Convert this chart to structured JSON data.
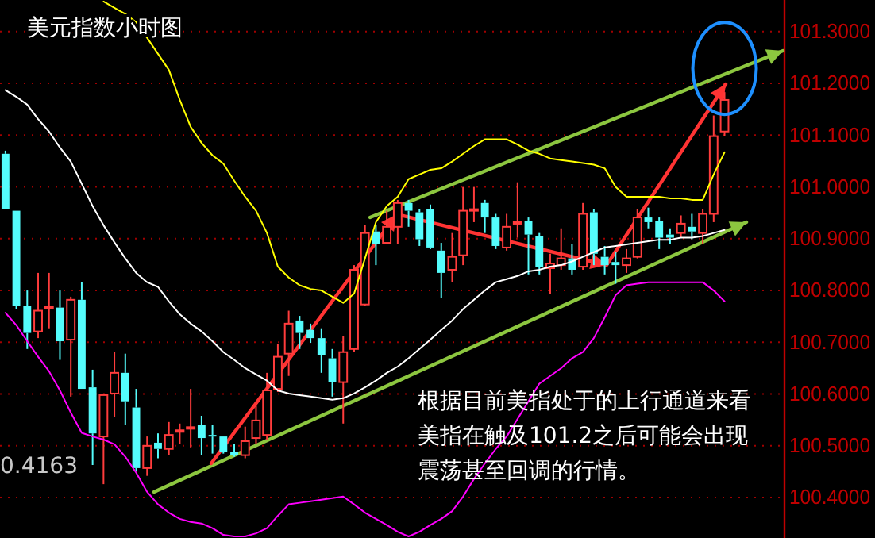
{
  "chart_data": {
    "type": "candlestick",
    "title": "美元指数小时图",
    "categories": [
      null,
      null,
      null,
      null,
      null,
      null,
      null,
      null,
      null,
      null,
      null,
      null,
      null,
      null,
      null,
      null,
      null,
      null,
      null,
      null,
      null,
      null,
      null,
      null,
      null,
      null,
      null,
      null,
      null,
      null,
      null,
      null,
      null,
      null,
      null,
      null,
      null,
      null,
      null,
      null,
      null,
      null,
      null,
      null,
      null,
      null,
      null,
      null,
      null,
      null,
      null,
      null,
      null,
      null,
      null,
      null,
      null,
      null,
      null,
      null,
      null,
      null,
      null,
      null,
      null,
      null,
      null,
      null,
      null,
      null,
      null,
      null
    ],
    "ohlc": [
      [
        101.064,
        101.07,
        100.957,
        100.957
      ],
      [
        100.954,
        100.954,
        100.764,
        100.77
      ],
      [
        100.77,
        100.8,
        100.687,
        100.718
      ],
      [
        100.721,
        100.834,
        100.708,
        100.761
      ],
      [
        100.766,
        100.834,
        100.727,
        100.769
      ],
      [
        100.767,
        100.8,
        100.666,
        100.702
      ],
      [
        100.705,
        100.788,
        100.595,
        100.782
      ],
      [
        100.782,
        100.816,
        100.61,
        100.61
      ],
      [
        100.613,
        100.647,
        100.463,
        100.524
      ],
      [
        100.518,
        100.601,
        100.426,
        100.598
      ],
      [
        100.601,
        100.681,
        100.555,
        100.641
      ],
      [
        100.641,
        100.678,
        100.54,
        100.586
      ],
      [
        100.574,
        100.61,
        100.451,
        100.457
      ],
      [
        100.457,
        100.518,
        100.442,
        100.5
      ],
      [
        100.506,
        100.524,
        100.476,
        100.494
      ],
      [
        100.494,
        100.546,
        100.482,
        100.521
      ],
      [
        100.527,
        100.543,
        100.503,
        100.53
      ],
      [
        100.533,
        100.61,
        100.497,
        100.536
      ],
      [
        100.54,
        100.558,
        100.482,
        100.515
      ],
      [
        100.521,
        100.54,
        100.485,
        100.518
      ],
      [
        100.518,
        100.518,
        100.485,
        100.488
      ],
      [
        100.488,
        100.503,
        100.479,
        100.482
      ],
      [
        100.482,
        100.537,
        100.476,
        100.509
      ],
      [
        100.515,
        100.58,
        100.503,
        100.549
      ],
      [
        100.521,
        100.641,
        100.512,
        100.607
      ],
      [
        100.61,
        100.696,
        100.604,
        100.672
      ],
      [
        100.678,
        100.761,
        100.635,
        100.736
      ],
      [
        100.742,
        100.751,
        100.687,
        100.718
      ],
      [
        100.724,
        100.736,
        100.699,
        100.708
      ],
      [
        100.708,
        100.727,
        100.641,
        100.675
      ],
      [
        100.669,
        100.687,
        100.595,
        100.623
      ],
      [
        100.623,
        100.712,
        100.543,
        100.681
      ],
      [
        100.687,
        100.849,
        100.681,
        100.84
      ],
      [
        100.773,
        100.926,
        100.77,
        100.911
      ],
      [
        100.914,
        100.926,
        100.849,
        100.889
      ],
      [
        100.892,
        100.954,
        100.889,
        100.923
      ],
      [
        100.923,
        100.975,
        100.889,
        100.969
      ],
      [
        100.969,
        100.975,
        100.923,
        100.954
      ],
      [
        100.951,
        100.957,
        100.886,
        100.899
      ],
      [
        100.957,
        100.966,
        100.88,
        100.883
      ],
      [
        100.877,
        100.892,
        100.785,
        100.834
      ],
      [
        100.84,
        100.911,
        100.816,
        100.865
      ],
      [
        100.868,
        101.0,
        100.849,
        100.954
      ],
      [
        100.954,
        101.0,
        100.932,
        100.957
      ],
      [
        100.969,
        100.975,
        100.911,
        100.941
      ],
      [
        100.941,
        100.948,
        100.88,
        100.886
      ],
      [
        100.883,
        100.948,
        100.877,
        100.923
      ],
      [
        100.929,
        101.009,
        100.902,
        100.932
      ],
      [
        100.935,
        100.941,
        100.831,
        100.908
      ],
      [
        100.905,
        100.911,
        100.831,
        100.846
      ],
      [
        100.843,
        100.871,
        100.794,
        100.852
      ],
      [
        100.849,
        100.92,
        100.84,
        100.862
      ],
      [
        100.862,
        100.889,
        100.831,
        100.84
      ],
      [
        100.846,
        100.969,
        100.84,
        100.948
      ],
      [
        100.951,
        100.957,
        100.849,
        100.871
      ],
      [
        100.865,
        100.886,
        100.831,
        100.849
      ],
      [
        100.855,
        100.874,
        100.813,
        100.849
      ],
      [
        100.849,
        100.88,
        100.834,
        100.862
      ],
      [
        100.865,
        100.957,
        100.862,
        100.941
      ],
      [
        100.941,
        100.96,
        100.92,
        100.932
      ],
      [
        100.935,
        100.941,
        100.88,
        100.902
      ],
      [
        100.908,
        100.92,
        100.889,
        100.902
      ],
      [
        100.911,
        100.945,
        100.902,
        100.929
      ],
      [
        100.923,
        100.948,
        100.899,
        100.914
      ],
      [
        100.911,
        100.957,
        100.889,
        100.948
      ],
      [
        100.948,
        101.138,
        100.932,
        101.098
      ],
      [
        101.107,
        101.183,
        101.098,
        101.168
      ],
      null,
      null,
      null,
      null,
      null
    ],
    "series": [
      {
        "type": "line",
        "color": "#ffff00",
        "values": [
          null,
          null,
          null,
          null,
          null,
          null,
          null,
          null,
          null,
          101.358,
          101.346,
          101.334,
          101.318,
          101.288,
          101.257,
          101.226,
          101.168,
          101.116,
          101.085,
          101.061,
          101.045,
          101.012,
          100.981,
          100.954,
          100.911,
          100.846,
          100.825,
          100.81,
          100.803,
          100.8,
          100.788,
          100.776,
          100.794,
          100.862,
          100.932,
          100.963,
          100.981,
          101.015,
          101.024,
          101.033,
          101.036,
          101.049,
          101.064,
          101.079,
          101.092,
          101.092,
          101.092,
          101.082,
          101.07,
          101.064,
          101.055,
          101.052,
          101.049,
          101.046,
          101.043,
          101.036,
          101.0,
          100.981,
          100.981,
          100.981,
          100.981,
          100.978,
          100.978,
          100.975,
          100.975,
          101.024,
          101.067,
          null,
          null,
          null,
          null,
          null
        ]
      },
      {
        "type": "line",
        "color": "#ffffff",
        "values": [
          101.187,
          101.174,
          101.159,
          101.131,
          101.107,
          101.076,
          101.049,
          101.006,
          100.963,
          100.926,
          100.893,
          100.862,
          100.834,
          100.816,
          100.807,
          100.779,
          100.754,
          100.736,
          100.721,
          100.702,
          100.681,
          100.666,
          100.65,
          100.638,
          100.626,
          100.607,
          100.601,
          100.598,
          100.595,
          100.592,
          100.589,
          100.592,
          100.601,
          100.613,
          100.626,
          100.641,
          100.653,
          100.669,
          100.687,
          100.705,
          100.724,
          100.742,
          100.764,
          100.782,
          100.8,
          100.816,
          100.822,
          100.828,
          100.837,
          100.84,
          100.846,
          100.849,
          100.856,
          100.865,
          100.874,
          100.883,
          100.886,
          100.889,
          100.892,
          100.895,
          100.898,
          100.898,
          100.902,
          100.902,
          100.905,
          100.911,
          100.917,
          null,
          null,
          null,
          null,
          null
        ]
      },
      {
        "type": "line",
        "color": "#ff00ff",
        "values": [
          100.757,
          100.733,
          100.702,
          100.672,
          100.644,
          100.607,
          100.564,
          100.525,
          100.518,
          100.512,
          100.503,
          100.479,
          100.448,
          100.411,
          100.387,
          100.371,
          100.359,
          100.353,
          100.35,
          100.341,
          100.328,
          100.325,
          100.325,
          100.331,
          100.341,
          100.365,
          100.387,
          100.39,
          100.393,
          100.396,
          100.399,
          100.402,
          100.387,
          100.371,
          100.359,
          100.347,
          100.334,
          100.325,
          100.334,
          100.347,
          100.359,
          100.374,
          100.402,
          100.436,
          100.466,
          100.494,
          100.518,
          100.552,
          100.586,
          100.62,
          100.635,
          100.65,
          100.669,
          100.681,
          100.708,
          100.748,
          100.791,
          100.81,
          100.813,
          100.816,
          100.816,
          100.816,
          100.816,
          100.816,
          100.816,
          100.8,
          100.779,
          null,
          null,
          null,
          null,
          null
        ]
      }
    ],
    "ylim": [
      100.322,
      101.361
    ],
    "yticks": [
      {
        "value": 100.4,
        "label": "100.4000"
      },
      {
        "value": 100.5,
        "label": "100.5000"
      },
      {
        "value": 100.6,
        "label": "100.6000"
      },
      {
        "value": 100.7,
        "label": "100.7000"
      },
      {
        "value": 100.8,
        "label": "100.8000"
      },
      {
        "value": 100.9,
        "label": "100.9000"
      },
      {
        "value": 101.0,
        "label": "101.0000"
      },
      {
        "value": 101.1,
        "label": "101.1000"
      },
      {
        "value": 101.2,
        "label": "101.2000"
      },
      {
        "value": 101.3,
        "label": "101.3000"
      }
    ],
    "grid": "y",
    "tick_labels": "y",
    "annotations": [
      "根据目前美指处于的上行通道来看美指在触及101.2之后可能会出现震荡甚至回调的行情。",
      "0.4163"
    ]
  }
}
